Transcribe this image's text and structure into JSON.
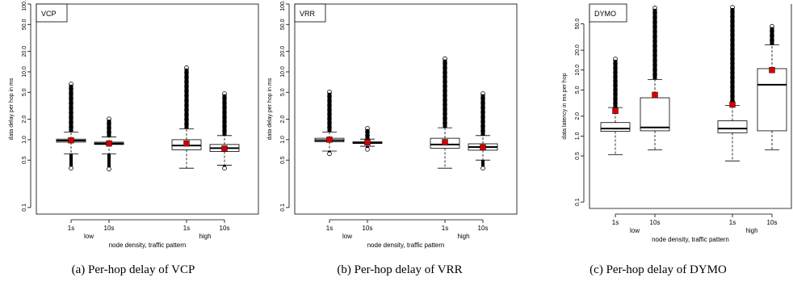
{
  "chart_data": [
    {
      "type": "box",
      "panel_label": "VCP",
      "caption": "(a) Per-hop delay of VCP",
      "ylabel": "data delay per hop in ms",
      "xlabel": "node density, traffic pattern",
      "yscale": "log",
      "ylim": [
        0.08,
        100
      ],
      "yticks": [
        "0.1",
        "0.5",
        "1.0",
        "2.0",
        "5.0",
        "10.0",
        "20.0",
        "50.0",
        "100.0"
      ],
      "groups": [
        "low",
        "high"
      ],
      "categories": [
        "1s",
        "10s",
        "1s",
        "10s"
      ],
      "boxes": [
        {
          "group": "low",
          "label": "1s",
          "whisker_low": 0.62,
          "q1": 0.92,
          "median": 0.97,
          "q3": 1.02,
          "whisker_high": 1.3,
          "mean": 0.98,
          "outlier_max": 7.2,
          "outlier_min": 0.38
        },
        {
          "group": "low",
          "label": "10s",
          "whisker_low": 0.62,
          "q1": 0.85,
          "median": 0.88,
          "q3": 0.92,
          "whisker_high": 1.1,
          "mean": 0.88,
          "outlier_max": 2.2,
          "outlier_min": 0.37
        },
        {
          "group": "high",
          "label": "1s",
          "whisker_low": 0.38,
          "q1": 0.71,
          "median": 0.82,
          "q3": 1.0,
          "whisker_high": 1.45,
          "mean": 0.88,
          "outlier_max": 12.5,
          "outlier_min": null
        },
        {
          "group": "high",
          "label": "10s",
          "whisker_low": 0.42,
          "q1": 0.67,
          "median": 0.75,
          "q3": 0.85,
          "whisker_high": 1.15,
          "mean": 0.74,
          "outlier_max": 5.2,
          "outlier_min": 0.38
        }
      ]
    },
    {
      "type": "box",
      "panel_label": "VRR",
      "caption": "(b) Per-hop delay of VRR",
      "ylabel": "data delay per hop in ms",
      "xlabel": "node density, traffic pattern",
      "yscale": "log",
      "ylim": [
        0.08,
        100
      ],
      "yticks": [
        "0.1",
        "0.5",
        "1.0",
        "2.0",
        "5.0",
        "10.0",
        "20.0",
        "50.0",
        "100.0"
      ],
      "groups": [
        "low",
        "high"
      ],
      "categories": [
        "1s",
        "10s",
        "1s",
        "10s"
      ],
      "boxes": [
        {
          "group": "low",
          "label": "1s",
          "whisker_low": 0.68,
          "q1": 0.93,
          "median": 0.98,
          "q3": 1.05,
          "whisker_high": 1.3,
          "mean": 1.0,
          "outlier_max": 5.5,
          "outlier_min": 0.62
        },
        {
          "group": "low",
          "label": "10s",
          "whisker_low": 0.8,
          "q1": 0.88,
          "median": 0.9,
          "q3": 0.93,
          "whisker_high": 1.02,
          "mean": 0.91,
          "outlier_max": 1.6,
          "outlier_min": 0.72
        },
        {
          "group": "high",
          "label": "1s",
          "whisker_low": 0.38,
          "q1": 0.75,
          "median": 0.85,
          "q3": 1.05,
          "whisker_high": 1.5,
          "mean": 0.92,
          "outlier_max": 17.0,
          "outlier_min": null
        },
        {
          "group": "high",
          "label": "10s",
          "whisker_low": 0.5,
          "q1": 0.7,
          "median": 0.78,
          "q3": 0.87,
          "whisker_high": 1.15,
          "mean": 0.77,
          "outlier_max": 5.2,
          "outlier_min": 0.38
        }
      ]
    },
    {
      "type": "box",
      "panel_label": "DYMO",
      "caption": "(c) Per-hop delay of DYMO",
      "ylabel": "data latency in ms per hop",
      "xlabel": "node density, traffic pattern",
      "yscale": "log",
      "ylim": [
        0.08,
        100
      ],
      "yticks": [
        "0.1",
        "0.5",
        "1.0",
        "2.0",
        "5.0",
        "10.0",
        "20.0",
        "50.0"
      ],
      "groups": [
        "low",
        "high"
      ],
      "categories": [
        "1s",
        "10s",
        "1s",
        "10s"
      ],
      "boxes": [
        {
          "group": "low",
          "label": "1s",
          "whisker_low": 0.52,
          "q1": 1.18,
          "median": 1.3,
          "q3": 1.6,
          "whisker_high": 2.7,
          "mean": 2.4,
          "outlier_max": 16.0,
          "outlier_min": null
        },
        {
          "group": "low",
          "label": "10s",
          "whisker_low": 0.62,
          "q1": 1.2,
          "median": 1.35,
          "q3": 3.8,
          "whisker_high": 7.2,
          "mean": 4.2,
          "outlier_max": 95.0,
          "outlier_min": null
        },
        {
          "group": "high",
          "label": "1s",
          "whisker_low": 0.42,
          "q1": 1.12,
          "median": 1.3,
          "q3": 1.7,
          "whisker_high": 2.9,
          "mean": 3.0,
          "outlier_max": 100.0,
          "outlier_min": null
        },
        {
          "group": "high",
          "label": "10s",
          "whisker_low": 0.62,
          "q1": 1.2,
          "median": 6.0,
          "q3": 10.5,
          "whisker_high": 24.0,
          "mean": 10.0,
          "outlier_max": 50.0,
          "outlier_min": null
        }
      ]
    }
  ],
  "colors": {
    "mean_marker": "#d40000",
    "axis": "#000000",
    "box_fill": "#ffffff"
  }
}
